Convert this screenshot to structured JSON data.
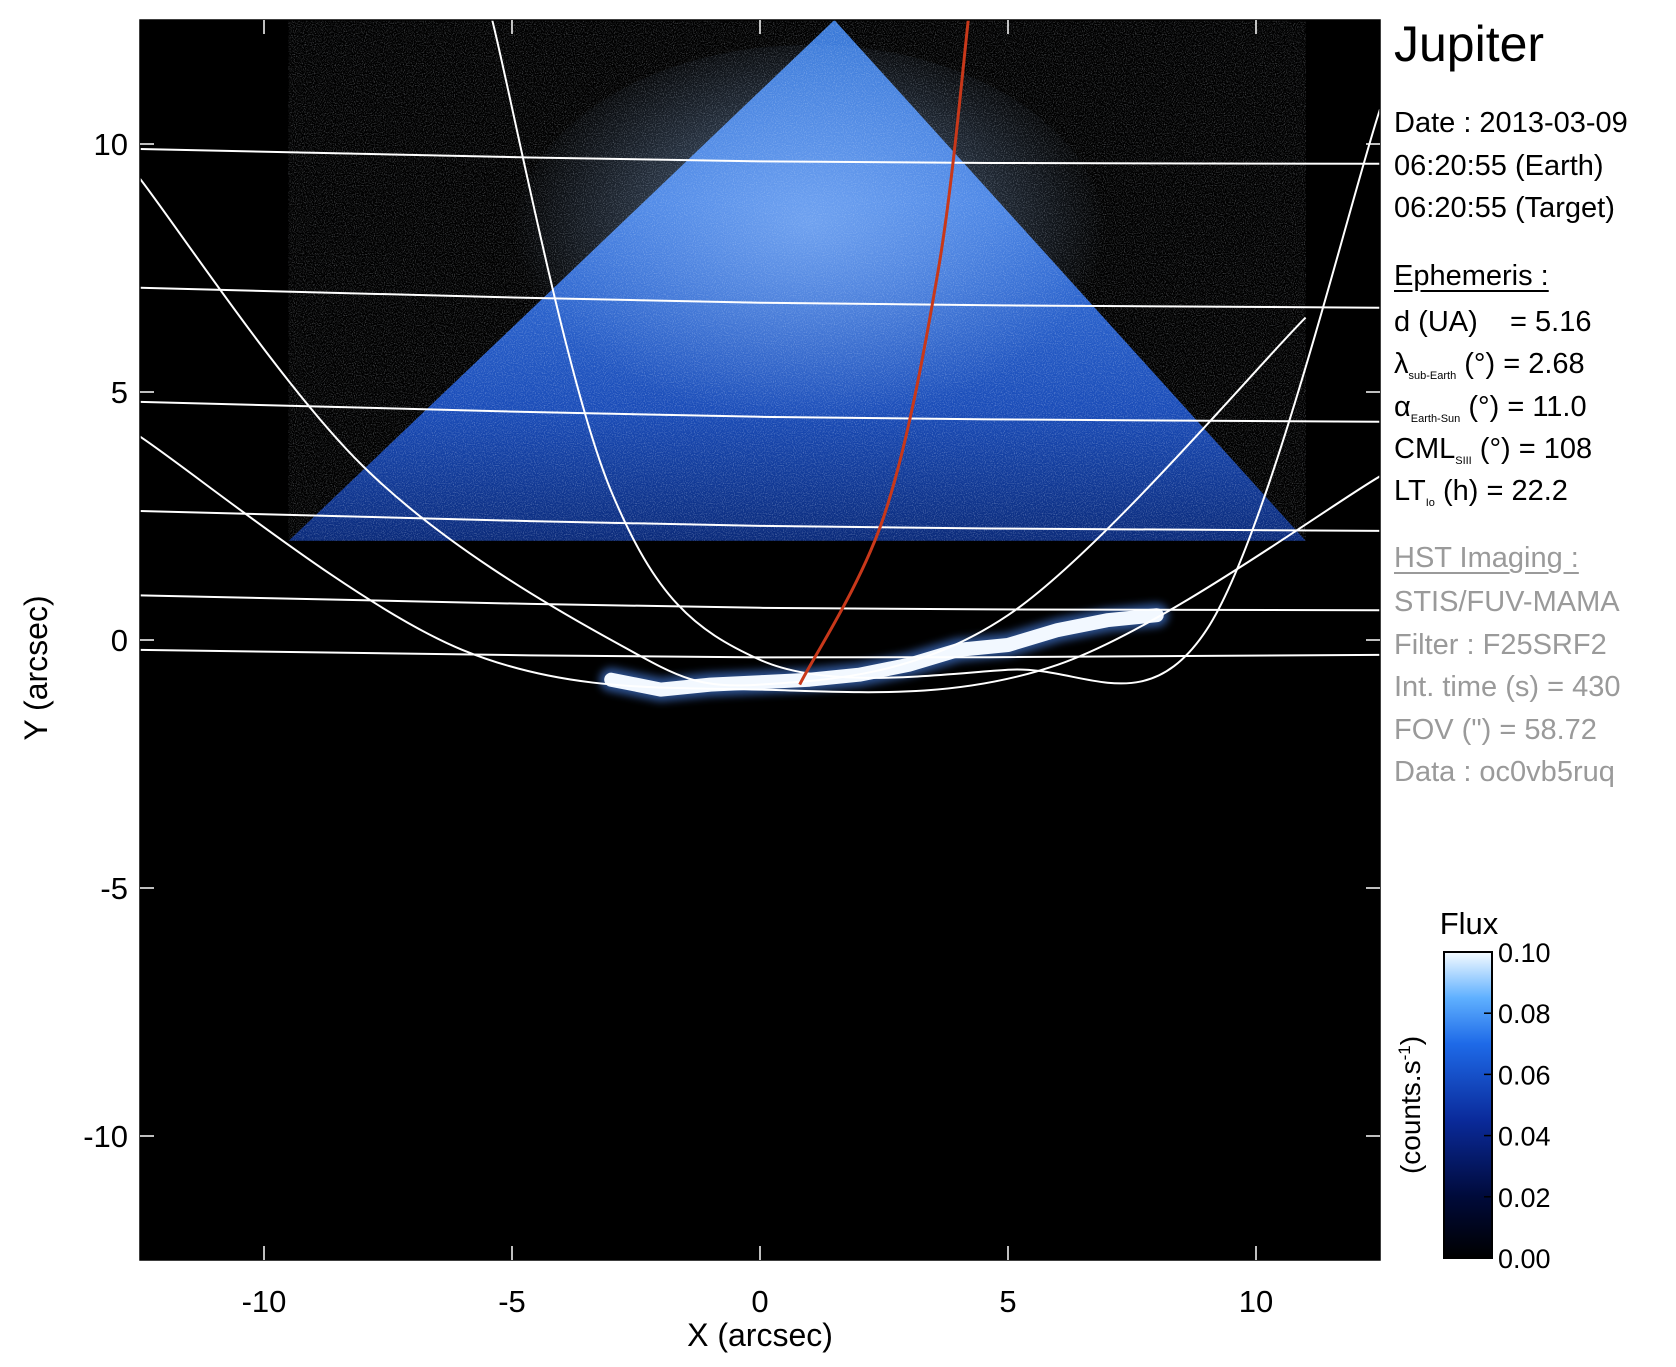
{
  "chart_data": {
    "type": "heatmap",
    "title": "",
    "xlabel": "X (arcsec)",
    "ylabel": "Y (arcsec)",
    "xlim": [
      -12.5,
      12.5
    ],
    "ylim": [
      -12.5,
      12.5
    ],
    "xticks": [
      -10,
      -5,
      0,
      5,
      10
    ],
    "yticks": [
      -10,
      -5,
      0,
      5,
      10
    ],
    "x_tick_labels": [
      "-10",
      "-5",
      "0",
      "5",
      "10"
    ],
    "y_tick_labels": [
      "-10",
      "-5",
      "0",
      "5",
      "10"
    ],
    "colorscale": "black-blue-white",
    "colorbar": {
      "title": "Flux",
      "label": "(counts.s",
      "label_sup": "-1",
      "label_end": ")",
      "range": [
        0.0,
        0.1
      ],
      "ticks": [
        0.0,
        0.02,
        0.04,
        0.06,
        0.08,
        0.1
      ],
      "tick_labels": [
        "0.00",
        "0.02",
        "0.04",
        "0.06",
        "0.08",
        "0.10"
      ]
    },
    "image_region": {
      "triangle_apex": [
        1.5,
        12.5
      ],
      "triangle_base_left": [
        -9.5,
        2.0
      ],
      "triangle_base_right": [
        11.0,
        2.0
      ]
    },
    "auroral_oval": [
      [
        -3.0,
        -0.8
      ],
      [
        -2.0,
        -1.0
      ],
      [
        -1.0,
        -0.9
      ],
      [
        0.0,
        -0.85
      ],
      [
        1.0,
        -0.8
      ],
      [
        2.0,
        -0.7
      ],
      [
        3.0,
        -0.5
      ],
      [
        4.0,
        -0.2
      ],
      [
        5.0,
        -0.1
      ],
      [
        6.0,
        0.2
      ],
      [
        7.0,
        0.4
      ],
      [
        8.0,
        0.5
      ]
    ],
    "grid_overlay": {
      "latitude_lines": [
        {
          "y_left": 9.9,
          "y_right": 9.6
        },
        {
          "y_left": 7.1,
          "y_right": 6.7
        },
        {
          "y_left": 4.8,
          "y_right": 4.4
        },
        {
          "y_left": 2.6,
          "y_right": 2.2
        },
        {
          "y_left": 0.9,
          "y_right": 0.6
        },
        {
          "y_left": -0.2,
          "y_right": -0.3
        }
      ],
      "limb_outer": [
        [
          -12.5,
          4.1
        ],
        [
          -6.0,
          -0.2
        ],
        [
          0.0,
          -1.0
        ],
        [
          6.0,
          -0.5
        ],
        [
          12.5,
          3.3
        ]
      ],
      "meridians": [
        [
          [
            -5.4,
            12.5
          ],
          [
            -3.0,
            3.0
          ],
          [
            0.0,
            -0.4
          ],
          [
            5.0,
            -0.6
          ],
          [
            9.0,
            0.2
          ],
          [
            12.5,
            10.7
          ]
        ],
        [
          [
            -12.5,
            9.3
          ],
          [
            -8.0,
            3.5
          ],
          [
            -3.0,
            0.0
          ],
          [
            0.0,
            -0.9
          ],
          [
            5.0,
            0.5
          ],
          [
            11.0,
            6.5
          ]
        ]
      ],
      "red_meridian": [
        [
          0.8,
          -0.9
        ],
        [
          2.5,
          2.5
        ],
        [
          3.6,
          7.5
        ],
        [
          4.2,
          12.5
        ]
      ]
    },
    "grid": false
  },
  "panel": {
    "target": "Jupiter",
    "date": "Date : 2013-03-09",
    "time_earth": "06:20:55 (Earth)",
    "time_target": "06:20:55 (Target)",
    "ephemeris_header": "Ephemeris :",
    "eph_d": "d (UA)    = 5.16",
    "eph_lambda_sym": "λ",
    "eph_lambda_sub": "sub-Earth",
    "eph_lambda_rest": " (°) = 2.68",
    "eph_alpha_sym": "α",
    "eph_alpha_sub": "Earth-Sun",
    "eph_alpha_rest": " (°) = 11.0",
    "eph_cml_sym": "CML",
    "eph_cml_sub": "SIII",
    "eph_cml_rest": " (°) = 108",
    "eph_lt_sym": "LT",
    "eph_lt_sub": "Io",
    "eph_lt_rest": " (h) = 22.2",
    "hst_header": "HST Imaging :",
    "hst_instrument": "STIS/FUV-MAMA",
    "hst_filter": "Filter : F25SRF2",
    "hst_inttime": "Int. time (s) = 430",
    "hst_fov": "FOV (\") = 58.72",
    "hst_data": "Data : oc0vb5ruq"
  },
  "colors": {
    "background": "#000000",
    "grid_lines": "#ffffff",
    "red_meridian": "#c8381a",
    "disk_blue_dark": "#0a2a80",
    "disk_blue_bright": "#3f86ff",
    "aurora": "#f2f8ff"
  }
}
